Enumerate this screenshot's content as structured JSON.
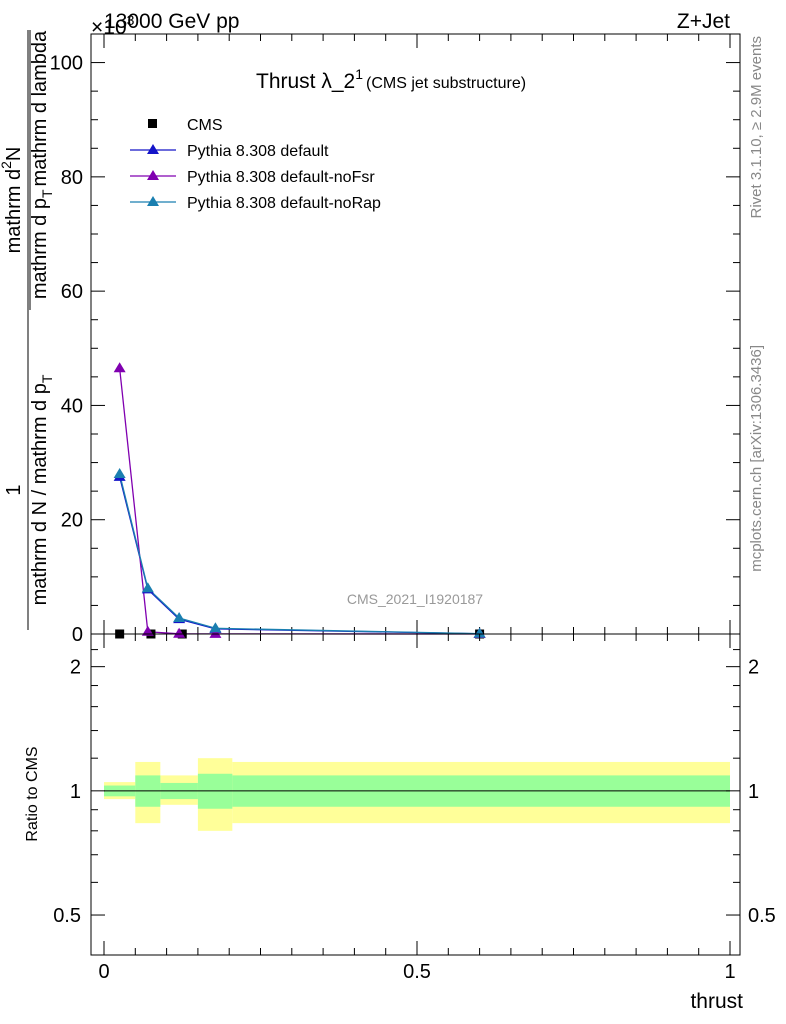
{
  "header": {
    "energy_label": "13000 GeV pp",
    "process_label": "Z+Jet",
    "exponent_label": "×10",
    "exponent_power": "3"
  },
  "side_labels": {
    "rivet": "Rivet 3.1.10, ≥ 2.9M events",
    "mcplots": "mcplots.cern.ch [arXiv:1306.3436]"
  },
  "watermark": "CMS_2021_I1920187",
  "chart_data": [
    {
      "type": "line",
      "panel": "main",
      "title": "Thrust λ_2",
      "title_sup": "1",
      "title_suffix": "(CMS jet substructure)",
      "ylabel_numerator": "1",
      "ylabel_denominator": "mathrm d N / mathrm d p",
      "ylabel_denominator_sub": "T",
      "ylabel_numerator2": "mathrm d",
      "ylabel_numerator2_sup": "2",
      "ylabel_numerator2_tail": "N",
      "ylabel_denominator2": "mathrm d p",
      "ylabel_denominator2_sub": "T",
      "ylabel_denominator2_tail": "mathrm d lambda",
      "xlim": [
        0,
        1
      ],
      "ylim": [
        0,
        105
      ],
      "y_ticks": [
        0,
        20,
        40,
        60,
        80,
        100
      ],
      "y_tick_labels": [
        "0",
        "20",
        "40",
        "60",
        "80",
        "100"
      ],
      "legend_placement": "top-left",
      "series": [
        {
          "name": "CMS",
          "color": "#000000",
          "marker": "square",
          "x": [
            0.025,
            0.075,
            0.125,
            0.6
          ],
          "y": [
            0.0,
            0.0,
            0.0,
            0.0
          ]
        },
        {
          "name": "Pythia 8.308 default",
          "color": "#1414c8",
          "marker": "triangle",
          "x": [
            0.025,
            0.07,
            0.12,
            0.178,
            0.6
          ],
          "y": [
            27.5,
            7.8,
            2.6,
            0.9,
            0.05
          ]
        },
        {
          "name": "Pythia 8.308 default-noFsr",
          "color": "#8000b0",
          "marker": "triangle",
          "x": [
            0.025,
            0.07,
            0.12,
            0.178,
            0.6
          ],
          "y": [
            46.5,
            0.4,
            0.05,
            0.02,
            0.0
          ]
        },
        {
          "name": "Pythia 8.308 default-noRap",
          "color": "#1a7fb0",
          "marker": "triangle",
          "x": [
            0.025,
            0.07,
            0.12,
            0.178,
            0.6
          ],
          "y": [
            28.0,
            8.0,
            2.8,
            1.0,
            0.06
          ]
        }
      ]
    },
    {
      "type": "area",
      "panel": "ratio",
      "ylabel": "Ratio to CMS",
      "xlabel": "thrust",
      "xlim": [
        0,
        1
      ],
      "ylim": [
        0.4,
        2.4
      ],
      "y_scale": "log",
      "y_ticks": [
        0.5,
        1,
        2
      ],
      "y_tick_labels": [
        "0.5",
        "1",
        "2"
      ],
      "x_ticks": [
        0,
        0.5,
        1
      ],
      "x_tick_labels": [
        "0",
        "0.5",
        "1"
      ],
      "reference_line": 1,
      "bins": [
        {
          "lo": 0.0,
          "hi": 0.05,
          "stat_lo": 0.97,
          "stat_hi": 1.03,
          "tot_lo": 0.955,
          "tot_hi": 1.05
        },
        {
          "lo": 0.05,
          "hi": 0.09,
          "stat_lo": 0.915,
          "stat_hi": 1.09,
          "tot_lo": 0.835,
          "tot_hi": 1.175
        },
        {
          "lo": 0.09,
          "hi": 0.15,
          "stat_lo": 0.955,
          "stat_hi": 1.045,
          "tot_lo": 0.925,
          "tot_hi": 1.09
        },
        {
          "lo": 0.15,
          "hi": 0.205,
          "stat_lo": 0.905,
          "stat_hi": 1.1,
          "tot_lo": 0.8,
          "tot_hi": 1.2
        },
        {
          "lo": 0.205,
          "hi": 1.0,
          "stat_lo": 0.915,
          "stat_hi": 1.09,
          "tot_lo": 0.835,
          "tot_hi": 1.175
        }
      ],
      "stat_color": "#99ff99",
      "tot_color": "#ffff99"
    }
  ]
}
